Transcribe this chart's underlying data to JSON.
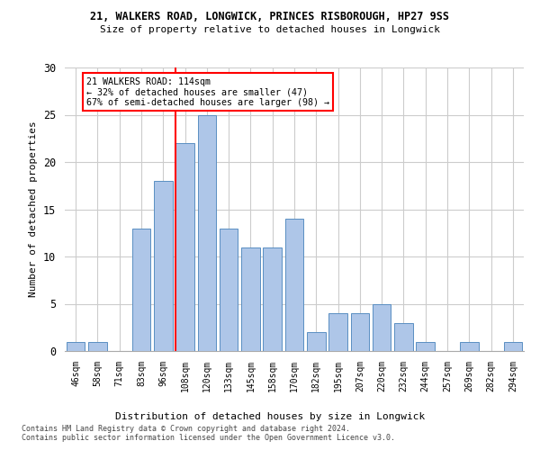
{
  "title1": "21, WALKERS ROAD, LONGWICK, PRINCES RISBOROUGH, HP27 9SS",
  "title2": "Size of property relative to detached houses in Longwick",
  "xlabel": "Distribution of detached houses by size in Longwick",
  "ylabel": "Number of detached properties",
  "bin_labels": [
    "46sqm",
    "58sqm",
    "71sqm",
    "83sqm",
    "96sqm",
    "108sqm",
    "120sqm",
    "133sqm",
    "145sqm",
    "158sqm",
    "170sqm",
    "182sqm",
    "195sqm",
    "207sqm",
    "220sqm",
    "232sqm",
    "244sqm",
    "257sqm",
    "269sqm",
    "282sqm",
    "294sqm"
  ],
  "bar_values": [
    1,
    1,
    0,
    13,
    18,
    22,
    25,
    13,
    11,
    11,
    14,
    2,
    4,
    4,
    5,
    3,
    1,
    0,
    1,
    0,
    1
  ],
  "bar_color": "#aec6e8",
  "bar_edge_color": "#5a8fc2",
  "annotation_line1": "21 WALKERS ROAD: 114sqm",
  "annotation_line2": "← 32% of detached houses are smaller (47)",
  "annotation_line3": "67% of semi-detached houses are larger (98) →",
  "annotation_box_color": "white",
  "annotation_box_edge": "red",
  "footer1": "Contains HM Land Registry data © Crown copyright and database right 2024.",
  "footer2": "Contains public sector information licensed under the Open Government Licence v3.0.",
  "ylim": [
    0,
    30
  ],
  "yticks": [
    0,
    5,
    10,
    15,
    20,
    25,
    30
  ],
  "bg_color": "white",
  "grid_color": "#cccccc"
}
